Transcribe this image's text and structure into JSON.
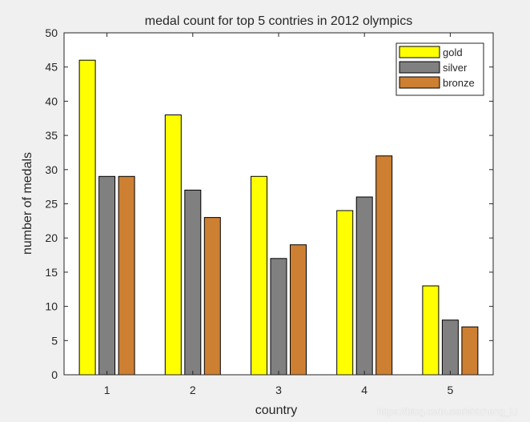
{
  "chart_data": {
    "type": "bar",
    "title": "medal count for top 5 contries in 2012 olympics",
    "xlabel": "country",
    "ylabel": "number of medals",
    "categories": [
      "1",
      "2",
      "3",
      "4",
      "5"
    ],
    "ylim": [
      0,
      50
    ],
    "yticks": [
      0,
      5,
      10,
      15,
      20,
      25,
      30,
      35,
      40,
      45,
      50
    ],
    "grid": false,
    "legend_position": "top-right",
    "series": [
      {
        "name": "gold",
        "color": "#ffff00",
        "values": [
          46,
          38,
          29,
          24,
          13
        ]
      },
      {
        "name": "silver",
        "color": "#808080",
        "values": [
          29,
          27,
          17,
          26,
          8
        ]
      },
      {
        "name": "bronze",
        "color": "#cd7f32",
        "values": [
          29,
          23,
          19,
          32,
          7
        ]
      }
    ]
  },
  "watermark": "https://blog.csdn.net/shizheng_Li"
}
